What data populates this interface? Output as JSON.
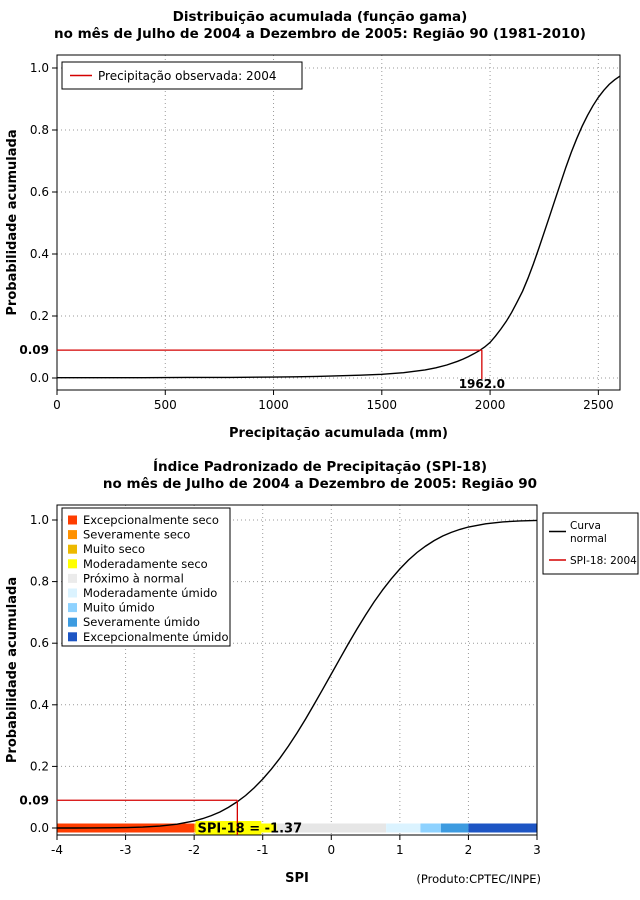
{
  "chart_data": [
    {
      "type": "line",
      "title": "Distribuição acumulada (função gama)",
      "subtitle": "no mês de Julho de 2004 a Dezembro de 2005: Região 90 (1981-2010)",
      "xlabel": "Precipitação acumulada (mm)",
      "ylabel": "Probabilidade acumulada",
      "xlim": [
        0,
        2600
      ],
      "ylim": [
        0,
        1
      ],
      "grid": true,
      "xticks": [
        {
          "v": 0,
          "label": "0"
        },
        {
          "v": 500,
          "label": "500"
        },
        {
          "v": 1000,
          "label": "1000"
        },
        {
          "v": 1500,
          "label": "1500"
        },
        {
          "v": 2000,
          "label": "2000"
        },
        {
          "v": 2500,
          "label": "2500"
        }
      ],
      "yticks": [
        {
          "v": 0.0,
          "label": "0.0"
        },
        {
          "v": 0.2,
          "label": "0.2"
        },
        {
          "v": 0.4,
          "label": "0.4"
        },
        {
          "v": 0.6,
          "label": "0.6"
        },
        {
          "v": 0.8,
          "label": "0.8"
        },
        {
          "v": 1.0,
          "label": "1.0"
        }
      ],
      "legend": {
        "position": "top-left",
        "entries": [
          {
            "type": "line",
            "color": "#d40000",
            "label": "Precipitação observada: 2004"
          }
        ]
      },
      "marker": {
        "x": 1962.0,
        "y": 0.09,
        "x_label": "1962.0",
        "y_label": "0.09",
        "color": "#d40000"
      },
      "series": [
        {
          "name": "Distribuição gama acumulada",
          "color": "#000000",
          "points": [
            [
              0,
              0.001
            ],
            [
              200,
              0.001
            ],
            [
              400,
              0.001
            ],
            [
              600,
              0.002
            ],
            [
              800,
              0.002
            ],
            [
              1000,
              0.003
            ],
            [
              1100,
              0.004
            ],
            [
              1200,
              0.005
            ],
            [
              1300,
              0.007
            ],
            [
              1400,
              0.009
            ],
            [
              1500,
              0.012
            ],
            [
              1600,
              0.017
            ],
            [
              1700,
              0.026
            ],
            [
              1750,
              0.033
            ],
            [
              1800,
              0.042
            ],
            [
              1850,
              0.054
            ],
            [
              1875,
              0.061
            ],
            [
              1900,
              0.069
            ],
            [
              1925,
              0.078
            ],
            [
              1950,
              0.088
            ],
            [
              1975,
              0.1
            ],
            [
              2000,
              0.115
            ],
            [
              2025,
              0.135
            ],
            [
              2050,
              0.158
            ],
            [
              2075,
              0.183
            ],
            [
              2100,
              0.212
            ],
            [
              2125,
              0.245
            ],
            [
              2150,
              0.28
            ],
            [
              2175,
              0.322
            ],
            [
              2200,
              0.368
            ],
            [
              2225,
              0.418
            ],
            [
              2250,
              0.47
            ],
            [
              2275,
              0.522
            ],
            [
              2300,
              0.575
            ],
            [
              2325,
              0.628
            ],
            [
              2350,
              0.68
            ],
            [
              2375,
              0.728
            ],
            [
              2400,
              0.772
            ],
            [
              2425,
              0.812
            ],
            [
              2450,
              0.847
            ],
            [
              2475,
              0.878
            ],
            [
              2500,
              0.905
            ],
            [
              2525,
              0.928
            ],
            [
              2550,
              0.947
            ],
            [
              2575,
              0.962
            ],
            [
              2600,
              0.974
            ]
          ]
        }
      ]
    },
    {
      "type": "line",
      "title": "Índice Padronizado de Precipitação (SPI-18)",
      "subtitle": "no mês de Julho de 2004 a Dezembro de 2005: Região 90",
      "xlabel": "SPI",
      "ylabel": "Probabilidade acumulada",
      "credit": "(Produto:CPTEC/INPE)",
      "xlim": [
        -4,
        3
      ],
      "ylim": [
        0,
        1
      ],
      "grid": true,
      "xticks": [
        {
          "v": -4,
          "label": "-4"
        },
        {
          "v": -3,
          "label": "-3"
        },
        {
          "v": -2,
          "label": "-2"
        },
        {
          "v": -1,
          "label": "-1"
        },
        {
          "v": 0,
          "label": "0"
        },
        {
          "v": 1,
          "label": "1"
        },
        {
          "v": 2,
          "label": "2"
        },
        {
          "v": 3,
          "label": "3"
        }
      ],
      "yticks": [
        {
          "v": 0.0,
          "label": "0.0"
        },
        {
          "v": 0.2,
          "label": "0.2"
        },
        {
          "v": 0.4,
          "label": "0.4"
        },
        {
          "v": 0.6,
          "label": "0.6"
        },
        {
          "v": 0.8,
          "label": "0.8"
        },
        {
          "v": 1.0,
          "label": "1.0"
        }
      ],
      "category_legend": [
        {
          "label": "Excepcionalmente seco",
          "color": "#ff3d00"
        },
        {
          "label": "Severamente seco",
          "color": "#ff9100"
        },
        {
          "label": "Muito seco",
          "color": "#edb900"
        },
        {
          "label": "Moderadamente seco",
          "color": "#ffff00"
        },
        {
          "label": "Próximo à normal",
          "color": "#ebebeb"
        },
        {
          "label": "Moderadamente úmido",
          "color": "#dbf3ff"
        },
        {
          "label": "Muito úmido",
          "color": "#8ed2ff"
        },
        {
          "label": "Severamente úmido",
          "color": "#3d9be0"
        },
        {
          "label": "Excepcionalmente úmido",
          "color": "#1d55c4"
        }
      ],
      "curve_legend": {
        "position": "top-right",
        "entries": [
          {
            "type": "line",
            "color": "#000000",
            "label": "Curva normal",
            "lines": [
              "Curva",
              "normal"
            ]
          },
          {
            "type": "line",
            "color": "#d40000",
            "label": "SPI-18: 2004",
            "lines": [
              "SPI-18: 2004"
            ]
          }
        ]
      },
      "marker": {
        "x": -1.37,
        "y": 0.09,
        "y_label": "0.09",
        "color": "#d40000"
      },
      "annotation": {
        "text": "SPI-18 = -1.37",
        "highlight_color": "#ffff00",
        "x_from": -1.98,
        "x_to": -1.02
      },
      "spi_bar": {
        "segments": [
          {
            "label": "Excepcionalmente seco",
            "color": "#ff3d00",
            "from": -4,
            "to": -2
          },
          {
            "label": "Severamente seco",
            "color": "#ff9100",
            "from": -2,
            "to": -1.6
          },
          {
            "label": "Muito seco",
            "color": "#edb900",
            "from": -1.6,
            "to": -1.3
          },
          {
            "label": "Moderadamente seco",
            "color": "#ffff00",
            "from": -1.3,
            "to": -0.8
          },
          {
            "label": "Próximo à normal",
            "color": "#e6e6e6",
            "from": -0.8,
            "to": 0.8
          },
          {
            "label": "Moderadamente úmido",
            "color": "#dbf3ff",
            "from": 0.8,
            "to": 1.3
          },
          {
            "label": "Muito úmido",
            "color": "#8ed2ff",
            "from": 1.3,
            "to": 1.6
          },
          {
            "label": "Severamente úmido",
            "color": "#3d9be0",
            "from": 1.6,
            "to": 2
          },
          {
            "label": "Excepcionalmente úmido",
            "color": "#1d55c4",
            "from": 2,
            "to": 3
          }
        ]
      },
      "series": [
        {
          "name": "Curva normal",
          "color": "#000000",
          "points": [
            [
              -4,
              0.0
            ],
            [
              -3.75,
              0.0001
            ],
            [
              -3.5,
              0.0002
            ],
            [
              -3.25,
              0.0006
            ],
            [
              -3,
              0.0013
            ],
            [
              -2.75,
              0.003
            ],
            [
              -2.5,
              0.0062
            ],
            [
              -2.25,
              0.0122
            ],
            [
              -2,
              0.0228
            ],
            [
              -1.875,
              0.0304
            ],
            [
              -1.75,
              0.0401
            ],
            [
              -1.625,
              0.0521
            ],
            [
              -1.5,
              0.0668
            ],
            [
              -1.375,
              0.0846
            ],
            [
              -1.25,
              0.1056
            ],
            [
              -1.125,
              0.1303
            ],
            [
              -1,
              0.1587
            ],
            [
              -0.875,
              0.1908
            ],
            [
              -0.75,
              0.2266
            ],
            [
              -0.625,
              0.266
            ],
            [
              -0.5,
              0.3085
            ],
            [
              -0.375,
              0.3538
            ],
            [
              -0.25,
              0.4013
            ],
            [
              -0.125,
              0.4503
            ],
            [
              0,
              0.5
            ],
            [
              0.125,
              0.5497
            ],
            [
              0.25,
              0.5987
            ],
            [
              0.375,
              0.6462
            ],
            [
              0.5,
              0.6915
            ],
            [
              0.625,
              0.734
            ],
            [
              0.75,
              0.7734
            ],
            [
              0.875,
              0.8092
            ],
            [
              1,
              0.8413
            ],
            [
              1.125,
              0.8697
            ],
            [
              1.25,
              0.8944
            ],
            [
              1.375,
              0.9154
            ],
            [
              1.5,
              0.9332
            ],
            [
              1.625,
              0.9479
            ],
            [
              1.75,
              0.9599
            ],
            [
              1.875,
              0.9696
            ],
            [
              2,
              0.9772
            ],
            [
              2.25,
              0.9878
            ],
            [
              2.5,
              0.9938
            ],
            [
              2.75,
              0.997
            ],
            [
              3,
              0.9987
            ]
          ]
        }
      ]
    }
  ]
}
